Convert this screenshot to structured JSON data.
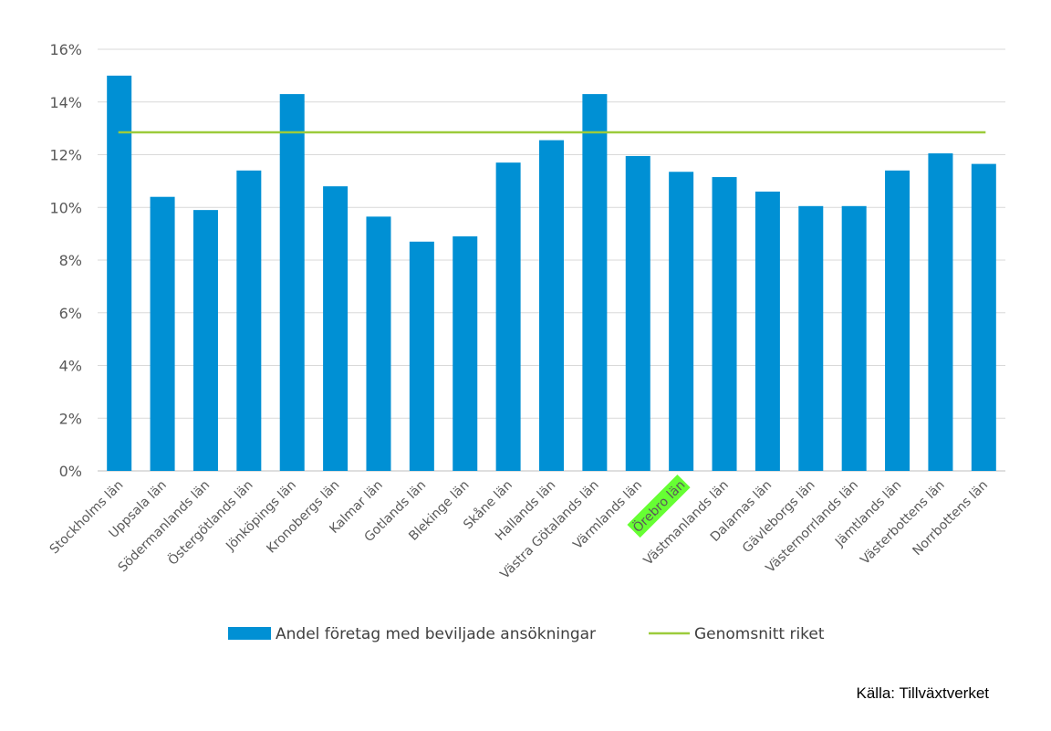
{
  "chart_data": {
    "type": "bar",
    "categories": [
      "Stockholms län",
      "Uppsala län",
      "Södermanlands län",
      "Östergötlands län",
      "Jönköpings län",
      "Kronobergs län",
      "Kalmar län",
      "Gotlands län",
      "Blekinge län",
      "Skåne län",
      "Hallands län",
      "Västra Götalands län",
      "Värmlands län",
      "Örebro län",
      "Västmanlands län",
      "Dalarnas län",
      "Gävleborgs län",
      "Västernorrlands län",
      "Jämtlands län",
      "Västerbottens län",
      "Norrbottens län"
    ],
    "series": [
      {
        "name": "Andel företag med beviljade ansökningar",
        "type": "bar",
        "color": "#0090d4",
        "values": [
          15.0,
          10.4,
          9.9,
          11.4,
          14.3,
          10.8,
          9.65,
          8.7,
          8.9,
          11.7,
          12.55,
          14.3,
          11.95,
          11.35,
          11.15,
          10.6,
          10.05,
          10.05,
          11.4,
          12.05,
          11.65
        ]
      },
      {
        "name": "Genomsnitt riket",
        "type": "line",
        "color": "#9ccb3b",
        "value": 12.85
      }
    ],
    "ylim": [
      0,
      16
    ],
    "yticks": [
      0,
      2,
      4,
      6,
      8,
      10,
      12,
      14,
      16
    ],
    "ytick_labels": [
      "0%",
      "2%",
      "4%",
      "6%",
      "8%",
      "10%",
      "12%",
      "14%",
      "16%"
    ],
    "grid": true,
    "legend_position": "bottom",
    "highlighted_category": "Örebro län",
    "highlight_color": "#66ff33"
  },
  "source_text": "Källa: Tillväxtverket"
}
